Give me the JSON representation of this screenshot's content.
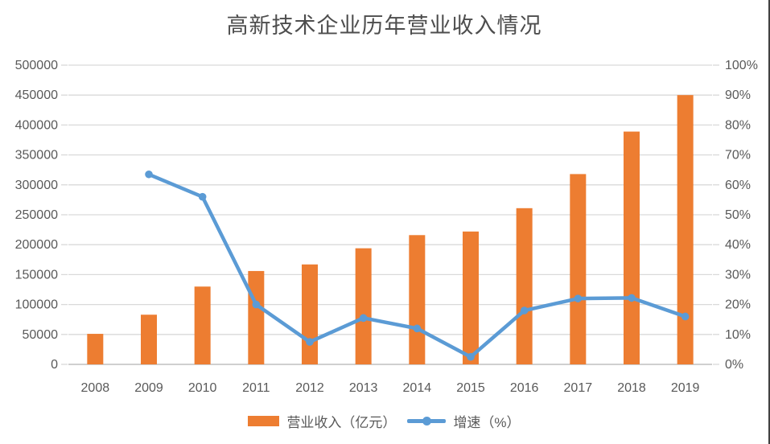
{
  "window": {
    "background": "#ffffff",
    "right_border_color": "#424242"
  },
  "chart_data": {
    "type": "bar+line",
    "title": "高新技术企业历年营业收入情况",
    "categories": [
      "2008",
      "2009",
      "2010",
      "2011",
      "2012",
      "2013",
      "2014",
      "2015",
      "2016",
      "2017",
      "2018",
      "2019"
    ],
    "series": [
      {
        "name": "营业收入（亿元）",
        "type": "bar",
        "axis": "left",
        "color": "#ED7D31",
        "values": [
          51000,
          83000,
          130000,
          156000,
          167000,
          194000,
          216000,
          222000,
          261000,
          318000,
          389000,
          450000
        ]
      },
      {
        "name": "增速（%）",
        "type": "line",
        "axis": "right",
        "color": "#5B9BD5",
        "values": [
          null,
          63.5,
          56,
          20,
          7.5,
          15.5,
          12,
          2.5,
          18,
          22,
          22.2,
          16
        ]
      }
    ],
    "left_axis": {
      "min": 0,
      "max": 500000,
      "step": 50000,
      "tick_labels": [
        "0",
        "50000",
        "100000",
        "150000",
        "200000",
        "250000",
        "300000",
        "350000",
        "400000",
        "450000",
        "500000"
      ]
    },
    "right_axis": {
      "min": 0,
      "max": 100,
      "step": 10,
      "tick_labels": [
        "0%",
        "10%",
        "20%",
        "30%",
        "40%",
        "50%",
        "60%",
        "70%",
        "80%",
        "90%",
        "100%"
      ]
    },
    "grid": true,
    "gridline_color": "#D9D9D9",
    "axis_line_color": "#CFCFCF",
    "axis_label_color": "#595959",
    "title_color": "#4d4d4d",
    "legend_position": "bottom"
  }
}
